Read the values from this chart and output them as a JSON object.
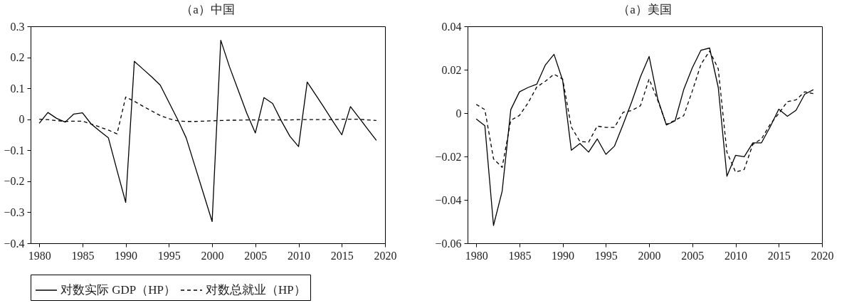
{
  "chart_data": [
    {
      "type": "line",
      "title": "（a）中国",
      "x": [
        1980,
        1981,
        1982,
        1983,
        1984,
        1985,
        1986,
        1987,
        1988,
        1989,
        1990,
        1991,
        1992,
        1993,
        1994,
        1995,
        1996,
        1997,
        1998,
        1999,
        2000,
        2001,
        2002,
        2003,
        2004,
        2005,
        2006,
        2007,
        2008,
        2009,
        2010,
        2011,
        2012,
        2013,
        2014,
        2015,
        2016,
        2017,
        2018,
        2019
      ],
      "series": [
        {
          "name": "对数实际 GDP（HP）",
          "color": "#000000",
          "line_style": "solid",
          "values": [
            -0.013,
            0.022,
            0.003,
            -0.009,
            0.017,
            0.021,
            -0.015,
            -0.038,
            -0.06,
            -0.165,
            -0.268,
            0.187,
            0.162,
            0.137,
            0.11,
            0.055,
            0.0,
            -0.06,
            -0.15,
            -0.24,
            -0.33,
            0.255,
            0.17,
            0.095,
            0.02,
            -0.044,
            0.07,
            0.051,
            -0.005,
            -0.055,
            -0.088,
            0.12,
            0.078,
            0.036,
            -0.008,
            -0.05,
            0.041,
            0.005,
            -0.032,
            -0.068
          ]
        },
        {
          "name": "对数总就业（HP）",
          "color": "#000000",
          "line_style": "dashed",
          "values": [
            0.0,
            -0.001,
            -0.004,
            -0.007,
            -0.006,
            -0.006,
            -0.015,
            -0.025,
            -0.035,
            -0.047,
            0.072,
            0.058,
            0.042,
            0.027,
            0.012,
            0.002,
            -0.005,
            -0.007,
            -0.007,
            -0.006,
            -0.005,
            -0.004,
            -0.003,
            -0.003,
            -0.002,
            -0.002,
            -0.002,
            -0.002,
            -0.002,
            -0.002,
            -0.001,
            -0.001,
            -0.001,
            -0.001,
            -0.001,
            0.0,
            0.0,
            0.0,
            -0.002,
            -0.004
          ]
        }
      ],
      "xlim": [
        1979,
        2020
      ],
      "xticks": [
        1980,
        1985,
        1990,
        1995,
        2000,
        2005,
        2010,
        2015,
        2020
      ],
      "ylim": [
        -0.4,
        0.3
      ],
      "yticks": [
        {
          "value": -0.4,
          "label": "−0.4"
        },
        {
          "value": -0.3,
          "label": "−0.3"
        },
        {
          "value": -0.2,
          "label": "−0.2"
        },
        {
          "value": -0.1,
          "label": "−0.1"
        },
        0,
        0.1,
        0.2,
        0.3
      ],
      "legend": "bottom"
    },
    {
      "type": "line",
      "title": "（a）美国",
      "x": [
        1980,
        1981,
        1982,
        1983,
        1984,
        1985,
        1986,
        1987,
        1988,
        1989,
        1990,
        1991,
        1992,
        1993,
        1994,
        1995,
        1996,
        1997,
        1998,
        1999,
        2000,
        2001,
        2002,
        2003,
        2004,
        2005,
        2006,
        2007,
        2008,
        2009,
        2010,
        2011,
        2012,
        2013,
        2014,
        2015,
        2016,
        2017,
        2018,
        2019
      ],
      "series": [
        {
          "name": "对数实际 GDP（HP）",
          "color": "#000000",
          "line_style": "solid",
          "values": [
            -0.0027,
            -0.0058,
            -0.0518,
            -0.036,
            0.0016,
            0.0098,
            0.0118,
            0.0133,
            0.0222,
            0.0271,
            0.0151,
            -0.0171,
            -0.014,
            -0.018,
            -0.0119,
            -0.019,
            -0.0152,
            -0.0052,
            0.0053,
            0.0167,
            0.0261,
            0.0065,
            -0.0055,
            -0.0036,
            0.0108,
            0.0209,
            0.029,
            0.03,
            0.0118,
            -0.0291,
            -0.0195,
            -0.0201,
            -0.0137,
            -0.0137,
            -0.0064,
            0.0018,
            -0.0015,
            0.0013,
            0.0087,
            0.0108
          ]
        },
        {
          "name": "对数总就业（HP）",
          "color": "#000000",
          "line_style": "dashed",
          "values": [
            0.004,
            0.0016,
            -0.0211,
            -0.025,
            -0.0033,
            -0.0011,
            0.0047,
            0.012,
            0.0147,
            0.0179,
            0.0157,
            -0.0064,
            -0.0131,
            -0.0134,
            -0.006,
            -0.0066,
            -0.0066,
            0.0004,
            0.0012,
            0.0034,
            0.0157,
            0.0059,
            -0.0052,
            -0.0033,
            -0.0012,
            0.0102,
            0.0225,
            0.0286,
            0.0204,
            -0.018,
            -0.0272,
            -0.026,
            -0.0144,
            -0.0119,
            -0.0052,
            -0.0002,
            0.0053,
            0.0061,
            0.0098,
            0.009
          ]
        }
      ],
      "xlim": [
        1979,
        2020
      ],
      "xticks": [
        1980,
        1985,
        1990,
        1995,
        2000,
        2005,
        2010,
        2015,
        2020
      ],
      "ylim": [
        -0.06,
        0.04
      ],
      "yticks": [
        {
          "value": -0.06,
          "label": "−0.06"
        },
        {
          "value": -0.04,
          "label": "−0.04"
        },
        {
          "value": -0.02,
          "label": "−0.02"
        },
        0,
        0.02,
        0.04
      ],
      "legend": "bottom"
    }
  ]
}
